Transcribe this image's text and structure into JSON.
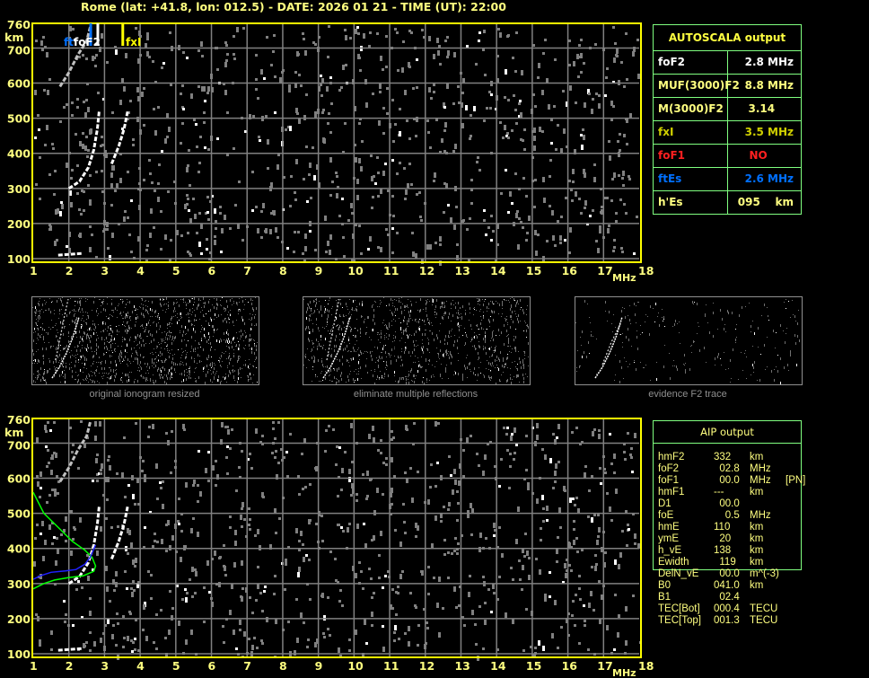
{
  "title": "Rome (lat: +41.8, lon: 012.5) - DATE: 2026 01 21 - TIME (UT): 22:00",
  "axes": {
    "x_ticks": [
      "1",
      "2",
      "3",
      "4",
      "5",
      "6",
      "7",
      "8",
      "9",
      "10",
      "11",
      "12",
      "13",
      "14",
      "15",
      "16",
      "17",
      "18"
    ],
    "x_unit": "MHz",
    "y_ticks": [
      "760",
      "700",
      "600",
      "500",
      "400",
      "300",
      "200",
      "100"
    ],
    "y_unit": "km"
  },
  "top_plot": {
    "markers": {
      "ftfoF2_label_ft": "ft",
      "ftfoF2_label_fo": "foF2",
      "fxI_label": "fxI"
    }
  },
  "colors": {
    "axis": "#ffff80",
    "grid": "#808080",
    "table_border": "#80ff80",
    "green_curve": "#00ff00",
    "blue_curve": "#0000ff",
    "es_blue": "#0070ff",
    "f1_red": "#ff2020"
  },
  "autoscala": {
    "header": "AUTOSCALA output",
    "rows": [
      {
        "key": "foF2",
        "value": "2.8 MHz",
        "color": "#ffffff"
      },
      {
        "key": "MUF(3000)F2",
        "value": "8.8 MHz",
        "color": "#ffff80"
      },
      {
        "key": "M(3000)F2",
        "value": "3.14     ",
        "color": "#ffff80"
      },
      {
        "key": "fxI",
        "value": "3.5 MHz",
        "color": "#d0d000"
      },
      {
        "key": "foF1",
        "value": "NO       ",
        "color": "#ff2020"
      },
      {
        "key": "ftEs",
        "value": "2.6 MHz",
        "color": "#0070ff"
      },
      {
        "key": "h'Es",
        "value": "095    km",
        "color": "#ffff80"
      }
    ]
  },
  "thumbnails": [
    {
      "caption": "original ionogram resized"
    },
    {
      "caption": "eliminate multiple reflections"
    },
    {
      "caption": "evidence F2 trace"
    }
  ],
  "aip": {
    "header": "AIP output",
    "rows": [
      [
        "hmF2",
        "332",
        "km",
        ""
      ],
      [
        "foF2",
        "  02.8",
        "MHz",
        ""
      ],
      [
        "foF1",
        "  00.0",
        "MHz",
        "[PN]"
      ],
      [
        "hmF1",
        "---",
        "km",
        ""
      ],
      [
        "D1",
        "  00.0",
        "",
        ""
      ],
      [
        "foE",
        "    0.5",
        "MHz",
        ""
      ],
      [
        "hmE",
        "110",
        "km",
        ""
      ],
      [
        "ymE",
        "  20",
        "km",
        ""
      ],
      [
        "h_vE",
        "138",
        "km",
        ""
      ],
      [
        "Ewidth",
        "  119",
        "km",
        ""
      ],
      [
        "DelN_vE",
        "  00.0",
        "m^(-3)",
        ""
      ],
      [
        "B0",
        "041.0",
        "km",
        ""
      ],
      [
        "B1",
        "  02.4",
        "",
        ""
      ],
      [
        "TEC[Bot]",
        "000.4",
        "TECU",
        ""
      ],
      [
        "TEC[Top]",
        "001.3",
        "TECU",
        ""
      ]
    ]
  }
}
